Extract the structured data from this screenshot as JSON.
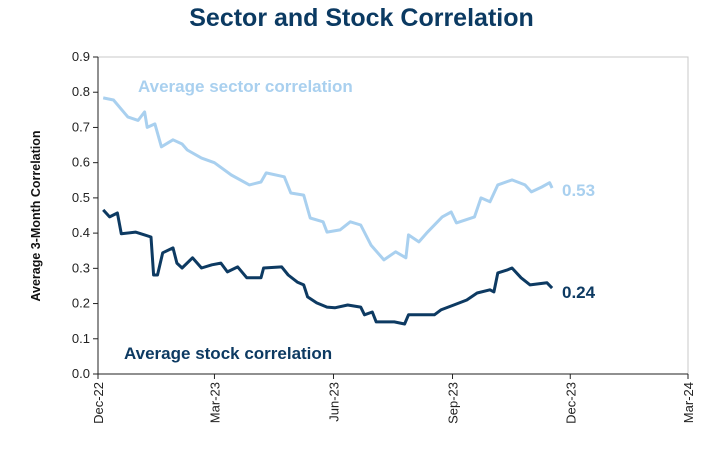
{
  "chart_data": {
    "type": "line",
    "title": "Sector and Stock Correlation",
    "xlabel": "",
    "ylabel": "Average 3-Month Correlation",
    "xlim": [
      "2022-12-01",
      "2024-03-01"
    ],
    "ylim": [
      0,
      0.9
    ],
    "yticks": [
      "0.0",
      "0.1",
      "0.2",
      "0.3",
      "0.4",
      "0.5",
      "0.6",
      "0.7",
      "0.8",
      "0.9"
    ],
    "xticks": [
      {
        "label": "Dec-22",
        "date": "2022-12-01"
      },
      {
        "label": "Mar-23",
        "date": "2023-03-01"
      },
      {
        "label": "Jun-23",
        "date": "2023-06-01"
      },
      {
        "label": "Sep-23",
        "date": "2023-09-01"
      },
      {
        "label": "Dec-23",
        "date": "2023-12-01"
      },
      {
        "label": "Mar-24",
        "date": "2024-03-01"
      }
    ],
    "grid": false,
    "series": [
      {
        "name": "Average sector correlation",
        "color": "#a9d0ef",
        "end_label": "0.53",
        "x": [
          "2022-12-05",
          "2022-12-13",
          "2022-12-24",
          "2023-01-01",
          "2023-01-06",
          "2023-01-08",
          "2023-01-14",
          "2023-01-19",
          "2023-01-28",
          "2023-02-04",
          "2023-02-08",
          "2023-02-19",
          "2023-03-01",
          "2023-03-14",
          "2023-03-28",
          "2023-04-06",
          "2023-04-10",
          "2023-04-24",
          "2023-04-29",
          "2023-05-09",
          "2023-05-14",
          "2023-05-24",
          "2023-05-27",
          "2023-06-06",
          "2023-06-14",
          "2023-06-22",
          "2023-06-30",
          "2023-07-10",
          "2023-07-19",
          "2023-07-27",
          "2023-07-29",
          "2023-08-06",
          "2023-08-12",
          "2023-08-24",
          "2023-08-31",
          "2023-09-04",
          "2023-09-18",
          "2023-09-23",
          "2023-09-30",
          "2023-10-06",
          "2023-10-17",
          "2023-10-27",
          "2023-11-01",
          "2023-11-09",
          "2023-11-15",
          "2023-11-17"
        ],
        "y": [
          0.784,
          0.778,
          0.73,
          0.72,
          0.744,
          0.7,
          0.71,
          0.645,
          0.665,
          0.653,
          0.636,
          0.613,
          0.6,
          0.565,
          0.537,
          0.545,
          0.571,
          0.56,
          0.514,
          0.508,
          0.443,
          0.432,
          0.403,
          0.409,
          0.432,
          0.423,
          0.366,
          0.324,
          0.347,
          0.33,
          0.395,
          0.375,
          0.4,
          0.446,
          0.46,
          0.429,
          0.446,
          0.5,
          0.489,
          0.537,
          0.551,
          0.537,
          0.517,
          0.531,
          0.543,
          0.528
        ]
      },
      {
        "name": "Average stock correlation",
        "color": "#0d3a62",
        "end_label": "0.24",
        "x": [
          "2022-12-05",
          "2022-12-10",
          "2022-12-16",
          "2022-12-19",
          "2022-12-30",
          "2023-01-06",
          "2023-01-11",
          "2023-01-13",
          "2023-01-16",
          "2023-01-20",
          "2023-01-28",
          "2023-01-31",
          "2023-02-04",
          "2023-02-12",
          "2023-02-19",
          "2023-02-27",
          "2023-03-06",
          "2023-03-11",
          "2023-03-19",
          "2023-03-26",
          "2023-04-06",
          "2023-04-08",
          "2023-04-22",
          "2023-04-27",
          "2023-05-04",
          "2023-05-09",
          "2023-05-12",
          "2023-05-19",
          "2023-05-27",
          "2023-06-02",
          "2023-06-12",
          "2023-06-22",
          "2023-06-25",
          "2023-07-01",
          "2023-07-04",
          "2023-07-10",
          "2023-07-18",
          "2023-07-26",
          "2023-07-29",
          "2023-08-10",
          "2023-08-18",
          "2023-08-23",
          "2023-09-02",
          "2023-09-12",
          "2023-09-20",
          "2023-09-30",
          "2023-10-03",
          "2023-10-06",
          "2023-10-13",
          "2023-10-17",
          "2023-10-24",
          "2023-10-31",
          "2023-11-13",
          "2023-11-17"
        ],
        "y": [
          0.466,
          0.446,
          0.457,
          0.398,
          0.403,
          0.395,
          0.389,
          0.281,
          0.281,
          0.344,
          0.358,
          0.315,
          0.301,
          0.33,
          0.301,
          0.31,
          0.315,
          0.29,
          0.304,
          0.273,
          0.273,
          0.301,
          0.304,
          0.281,
          0.261,
          0.253,
          0.219,
          0.202,
          0.19,
          0.188,
          0.196,
          0.19,
          0.168,
          0.176,
          0.148,
          0.148,
          0.148,
          0.142,
          0.168,
          0.168,
          0.168,
          0.182,
          0.196,
          0.21,
          0.23,
          0.239,
          0.233,
          0.287,
          0.295,
          0.301,
          0.273,
          0.253,
          0.259,
          0.244
        ]
      }
    ]
  }
}
